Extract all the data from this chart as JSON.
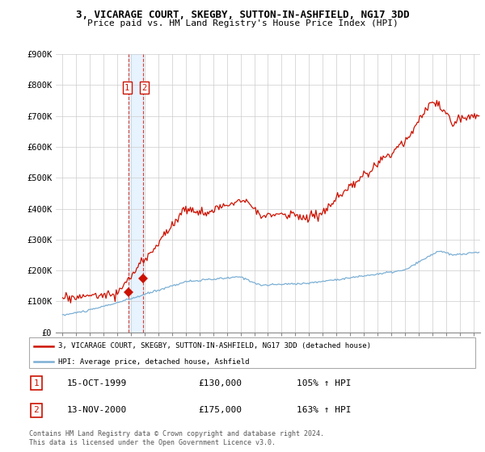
{
  "title": "3, VICARAGE COURT, SKEGBY, SUTTON-IN-ASHFIELD, NG17 3DD",
  "subtitle": "Price paid vs. HM Land Registry's House Price Index (HPI)",
  "hpi_color": "#7bafd4",
  "price_color": "#cc1100",
  "sale1_date": 1999.79,
  "sale1_price": 130000,
  "sale2_date": 2000.87,
  "sale2_price": 175000,
  "ylim": [
    0,
    900000
  ],
  "xlim_start": 1994.5,
  "xlim_end": 2025.5,
  "yticks": [
    0,
    100000,
    200000,
    300000,
    400000,
    500000,
    600000,
    700000,
    800000,
    900000
  ],
  "ytick_labels": [
    "£0",
    "£100K",
    "£200K",
    "£300K",
    "£400K",
    "£500K",
    "£600K",
    "£700K",
    "£800K",
    "£900K"
  ],
  "legend_entry1": "3, VICARAGE COURT, SKEGBY, SUTTON-IN-ASHFIELD, NG17 3DD (detached house)",
  "legend_entry2": "HPI: Average price, detached house, Ashfield",
  "table_row1": [
    "1",
    "15-OCT-1999",
    "£130,000",
    "105% ↑ HPI"
  ],
  "table_row2": [
    "2",
    "13-NOV-2000",
    "£175,000",
    "163% ↑ HPI"
  ],
  "footnote": "Contains HM Land Registry data © Crown copyright and database right 2024.\nThis data is licensed under the Open Government Licence v3.0.",
  "background_color": "#ffffff",
  "grid_color": "#cccccc",
  "shade_color": "#ddeeff"
}
